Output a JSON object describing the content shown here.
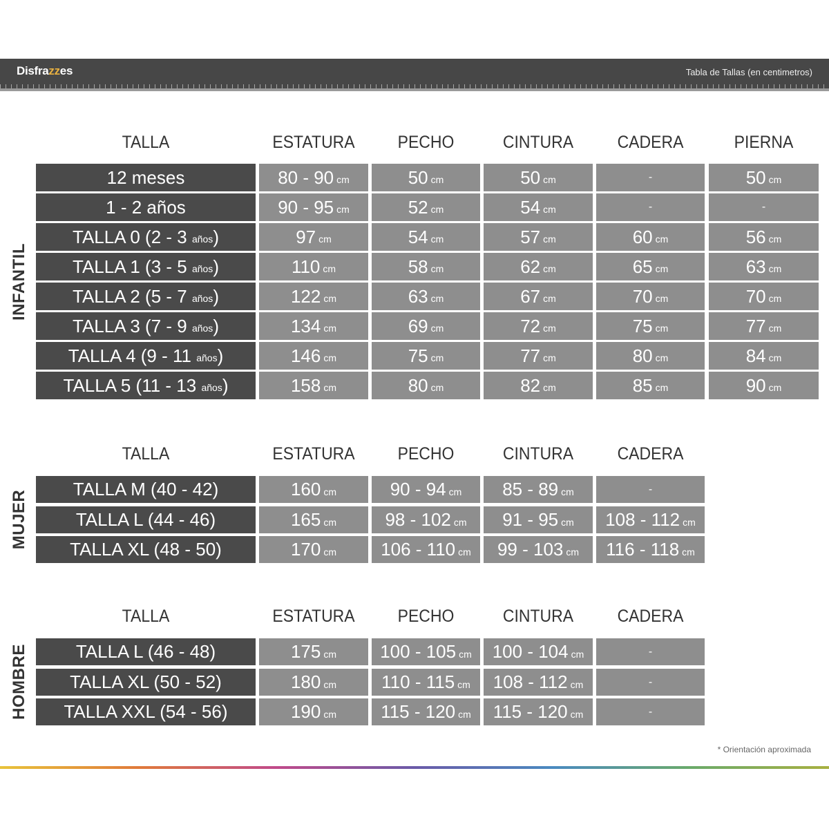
{
  "header": {
    "logo": "Disfrazzes",
    "title": "Tabla de Tallas (en centimetros)"
  },
  "unit": "cm",
  "sections": [
    {
      "name": "INFANTIL",
      "columns": [
        "TALLA",
        "ESTATURA",
        "PECHO",
        "CINTURA",
        "CADERA",
        "PIERNA"
      ],
      "rows": [
        {
          "label": "12 meses",
          "label_small": "",
          "label_end": "",
          "values": [
            "80 - 90",
            "50",
            "50",
            "-",
            "50"
          ]
        },
        {
          "label": "1 - 2 años",
          "label_small": "",
          "label_end": "",
          "values": [
            "90 - 95",
            "52",
            "54",
            "-",
            "-"
          ]
        },
        {
          "label": "TALLA 0 (2 - 3 ",
          "label_small": "años",
          "label_end": ")",
          "values": [
            "97",
            "54",
            "57",
            "60",
            "56"
          ]
        },
        {
          "label": "TALLA 1 (3 - 5 ",
          "label_small": "años",
          "label_end": ")",
          "values": [
            "110",
            "58",
            "62",
            "65",
            "63"
          ]
        },
        {
          "label": "TALLA 2 (5 - 7 ",
          "label_small": "años",
          "label_end": ")",
          "values": [
            "122",
            "63",
            "67",
            "70",
            "70"
          ]
        },
        {
          "label": "TALLA 3 (7 - 9 ",
          "label_small": "años",
          "label_end": ")",
          "values": [
            "134",
            "69",
            "72",
            "75",
            "77"
          ]
        },
        {
          "label": "TALLA 4 (9 - 11 ",
          "label_small": "años",
          "label_end": ")",
          "values": [
            "146",
            "75",
            "77",
            "80",
            "84"
          ]
        },
        {
          "label": "TALLA 5 (11 - 13 ",
          "label_small": "años",
          "label_end": ")",
          "values": [
            "158",
            "80",
            "82",
            "85",
            "90"
          ]
        }
      ]
    },
    {
      "name": "MUJER",
      "columns": [
        "TALLA",
        "ESTATURA",
        "PECHO",
        "CINTURA",
        "CADERA"
      ],
      "rows": [
        {
          "label": "TALLA M (40 - 42)",
          "label_small": "",
          "label_end": "",
          "values": [
            "160",
            "90 - 94",
            "85 - 89",
            "-"
          ]
        },
        {
          "label": "TALLA L (44 - 46)",
          "label_small": "",
          "label_end": "",
          "values": [
            "165",
            "98 - 102",
            "91 - 95",
            "108 - 112"
          ]
        },
        {
          "label": "TALLA XL (48 - 50)",
          "label_small": "",
          "label_end": "",
          "values": [
            "170",
            "106 - 110",
            "99 - 103",
            "116 - 118"
          ]
        }
      ]
    },
    {
      "name": "HOMBRE",
      "columns": [
        "TALLA",
        "ESTATURA",
        "PECHO",
        "CINTURA",
        "CADERA"
      ],
      "rows": [
        {
          "label": "TALLA L (46 - 48)",
          "label_small": "",
          "label_end": "",
          "values": [
            "175",
            "100 - 105",
            "100 - 104",
            "-"
          ]
        },
        {
          "label": "TALLA XL (50 - 52)",
          "label_small": "",
          "label_end": "",
          "values": [
            "180",
            "110 - 115",
            "108 - 112",
            "-"
          ]
        },
        {
          "label": "TALLA XXL (54 - 56)",
          "label_small": "",
          "label_end": "",
          "values": [
            "190",
            "115 - 120",
            "115 - 120",
            "-"
          ]
        }
      ]
    }
  ],
  "footer": {
    "note": "* Orientación aproximada"
  }
}
